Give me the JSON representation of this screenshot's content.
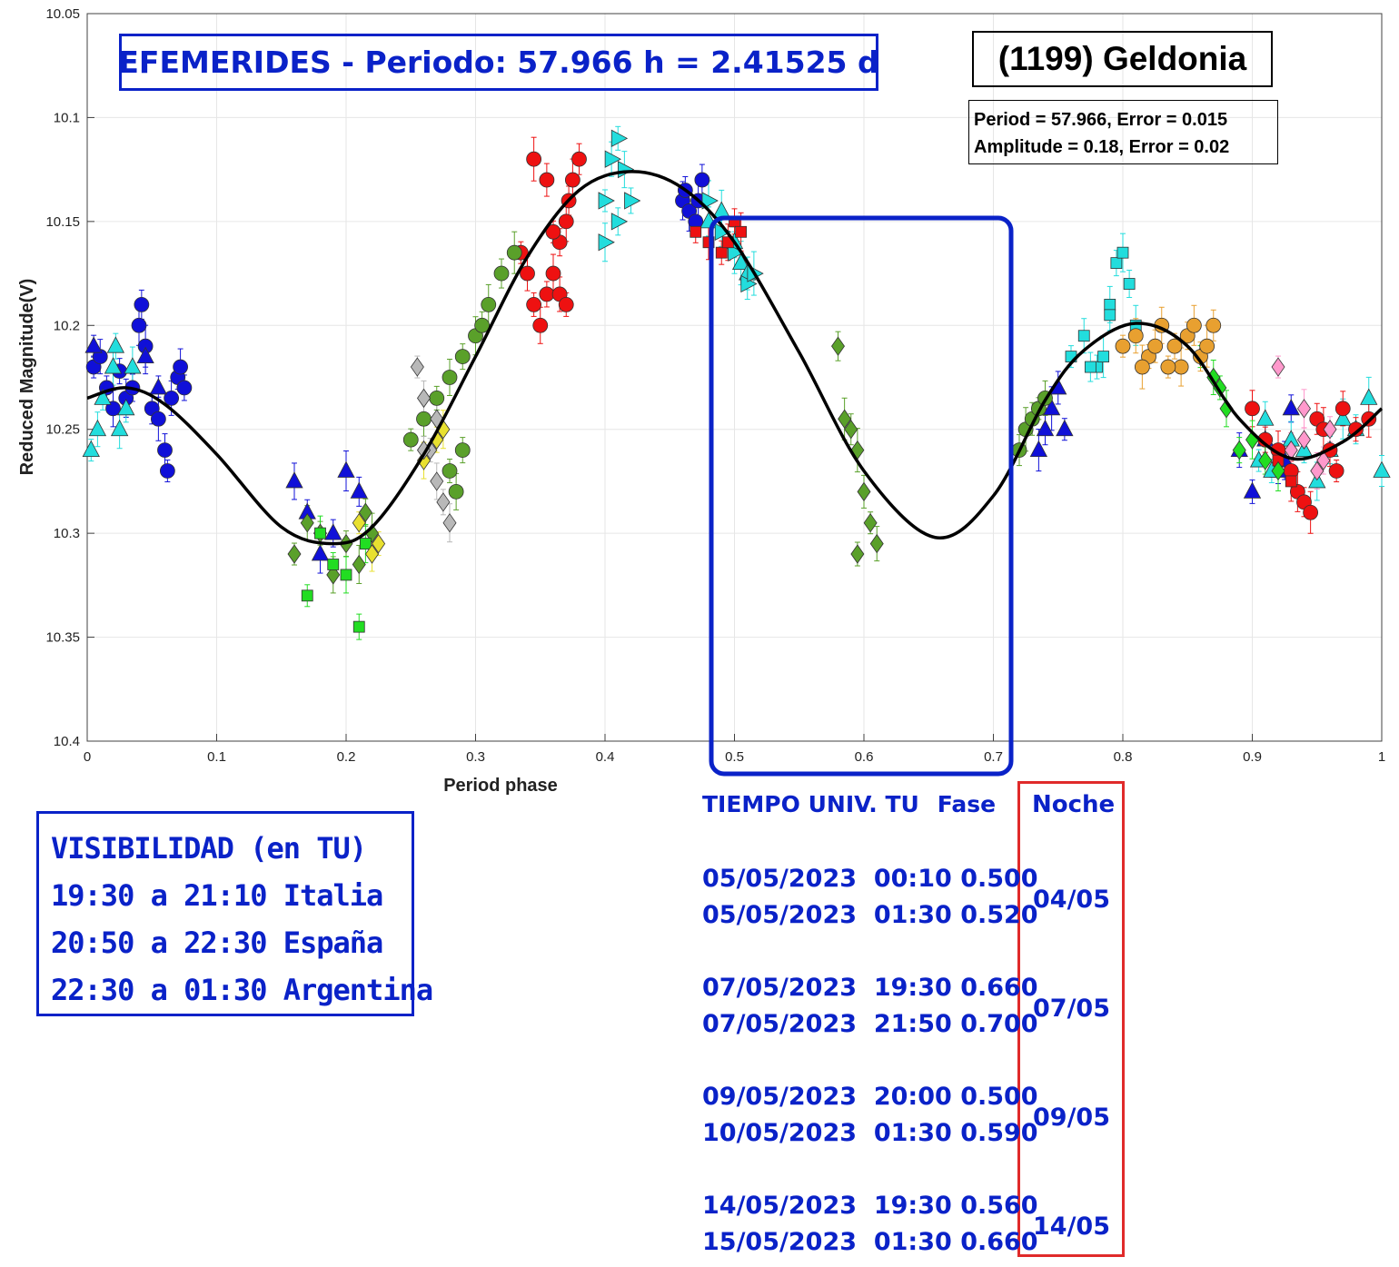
{
  "titles": {
    "ephemeris_title": "EFEMERIDES - Periodo: 57.966 h = 2.41525 d",
    "object_name": "(1199) Geldonia",
    "stats_period": "Period =  57.966, Error = 0.015",
    "stats_amplitude": "Amplitude = 0.18, Error = 0.02"
  },
  "visibility": {
    "title": "VISIBILIDAD (en TU)",
    "lines": [
      "19:30 a 21:10 Italia",
      "20:50 a 22:30 España",
      "22:30 a 01:30 Argentina"
    ]
  },
  "ephemeris": {
    "header_time": "TIEMPO UNIV. TU",
    "header_phase": "Fase",
    "header_night": "Noche",
    "rows": [
      {
        "date": "05/05/2023",
        "time": "00:10",
        "phase": "0.500"
      },
      {
        "date": "05/05/2023",
        "time": "01:30",
        "phase": "0.520"
      },
      {
        "date": "07/05/2023",
        "time": "19:30",
        "phase": "0.660"
      },
      {
        "date": "07/05/2023",
        "time": "21:50",
        "phase": "0.700"
      },
      {
        "date": "09/05/2023",
        "time": "20:00",
        "phase": "0.500"
      },
      {
        "date": "10/05/2023",
        "time": "01:30",
        "phase": "0.590"
      },
      {
        "date": "14/05/2023",
        "time": "19:30",
        "phase": "0.560"
      },
      {
        "date": "15/05/2023",
        "time": "01:30",
        "phase": "0.660"
      }
    ],
    "nights": [
      "04/05",
      "07/05",
      "09/05",
      "14/05"
    ]
  },
  "chart_data": {
    "type": "scatter",
    "xlabel": "Period phase",
    "ylabel": "Reduced Magnitude(V)",
    "xlim": [
      0,
      1
    ],
    "ylim": [
      10.05,
      10.4
    ],
    "y_inverted": true,
    "grid": true,
    "x_ticks": [
      "0",
      "0.1",
      "0.2",
      "0.3",
      "0.4",
      "0.5",
      "0.6",
      "0.7",
      "0.8",
      "0.9",
      "1"
    ],
    "y_ticks": [
      "10.05",
      "10.1",
      "10.15",
      "10.2",
      "10.25",
      "10.3",
      "10.35",
      "10.4"
    ],
    "highlight_phase_range": [
      0.485,
      0.715
    ],
    "fit_curve": {
      "x": [
        0.0,
        0.03,
        0.06,
        0.1,
        0.15,
        0.19,
        0.22,
        0.26,
        0.3,
        0.34,
        0.38,
        0.42,
        0.46,
        0.5,
        0.55,
        0.6,
        0.655,
        0.7,
        0.74,
        0.77,
        0.81,
        0.85,
        0.89,
        0.93,
        0.97,
        1.0
      ],
      "y": [
        10.235,
        10.23,
        10.238,
        10.262,
        10.297,
        10.305,
        10.297,
        10.262,
        10.215,
        10.167,
        10.135,
        10.126,
        10.134,
        10.16,
        10.213,
        10.27,
        10.302,
        10.282,
        10.236,
        10.212,
        10.199,
        10.21,
        10.245,
        10.264,
        10.256,
        10.24
      ]
    },
    "series": [
      {
        "color": "#1010d8",
        "marker": "circle",
        "x": [
          0.005,
          0.01,
          0.015,
          0.02,
          0.025,
          0.03,
          0.035,
          0.04,
          0.042,
          0.045,
          0.05,
          0.055,
          0.06,
          0.062,
          0.065,
          0.07,
          0.072,
          0.075,
          0.46,
          0.462,
          0.465,
          0.47,
          0.472,
          0.475
        ],
        "y": [
          10.22,
          10.215,
          10.23,
          10.24,
          10.222,
          10.235,
          10.23,
          10.2,
          10.19,
          10.21,
          10.24,
          10.245,
          10.26,
          10.27,
          10.235,
          10.225,
          10.22,
          10.23,
          10.14,
          10.135,
          10.145,
          10.15,
          10.14,
          10.13
        ]
      },
      {
        "color": "#1010d8",
        "marker": "triangle",
        "x": [
          0.005,
          0.045,
          0.055,
          0.16,
          0.17,
          0.18,
          0.19,
          0.2,
          0.21,
          0.735,
          0.74,
          0.745,
          0.75,
          0.755,
          0.89,
          0.9,
          0.91,
          0.92,
          0.925,
          0.93
        ],
        "y": [
          10.21,
          10.215,
          10.23,
          10.275,
          10.29,
          10.31,
          10.3,
          10.27,
          10.28,
          10.26,
          10.25,
          10.24,
          10.23,
          10.25,
          10.26,
          10.28,
          10.255,
          10.27,
          10.265,
          10.24
        ]
      },
      {
        "color": "#22dddd",
        "marker": "triangle",
        "x": [
          0.003,
          0.008,
          0.012,
          0.02,
          0.022,
          0.025,
          0.03,
          0.035,
          0.48,
          0.49,
          0.5,
          0.505,
          0.51,
          0.905,
          0.91,
          0.915,
          0.93,
          0.94,
          0.95,
          0.96,
          0.97,
          0.98,
          0.99,
          1.0
        ],
        "y": [
          10.26,
          10.25,
          10.235,
          10.22,
          10.21,
          10.25,
          10.24,
          10.22,
          10.15,
          10.145,
          10.16,
          10.17,
          10.175,
          10.265,
          10.245,
          10.27,
          10.255,
          10.26,
          10.275,
          10.26,
          10.245,
          10.25,
          10.235,
          10.27
        ]
      },
      {
        "color": "#22dddd",
        "marker": "triangle-right",
        "x": [
          0.4,
          0.405,
          0.41,
          0.415,
          0.42,
          0.4,
          0.41,
          0.48,
          0.49,
          0.5,
          0.51,
          0.515
        ],
        "y": [
          10.14,
          10.12,
          10.11,
          10.125,
          10.14,
          10.16,
          10.15,
          10.14,
          10.155,
          10.165,
          10.18,
          10.175
        ]
      },
      {
        "color": "#22dddd",
        "marker": "square",
        "x": [
          0.76,
          0.77,
          0.78,
          0.79,
          0.795,
          0.8,
          0.805,
          0.81,
          0.775,
          0.785,
          0.79
        ],
        "y": [
          10.215,
          10.205,
          10.22,
          10.19,
          10.17,
          10.165,
          10.18,
          10.2,
          10.22,
          10.215,
          10.195
        ]
      },
      {
        "color": "#ee1111",
        "marker": "circle",
        "x": [
          0.335,
          0.34,
          0.345,
          0.35,
          0.355,
          0.36,
          0.365,
          0.37,
          0.372,
          0.375,
          0.38,
          0.345,
          0.355,
          0.36,
          0.365,
          0.37,
          0.9,
          0.91,
          0.92,
          0.93,
          0.935,
          0.94,
          0.945,
          0.95,
          0.955,
          0.96,
          0.965,
          0.97,
          0.98,
          0.99
        ],
        "y": [
          10.165,
          10.175,
          10.19,
          10.2,
          10.185,
          10.175,
          10.16,
          10.15,
          10.14,
          10.13,
          10.12,
          10.12,
          10.13,
          10.155,
          10.185,
          10.19,
          10.24,
          10.255,
          10.26,
          10.27,
          10.28,
          10.285,
          10.29,
          10.245,
          10.25,
          10.26,
          10.27,
          10.24,
          10.25,
          10.245
        ]
      },
      {
        "color": "#ee1111",
        "marker": "square",
        "x": [
          0.47,
          0.48,
          0.49,
          0.495,
          0.5,
          0.505,
          0.92,
          0.93
        ],
        "y": [
          10.155,
          10.16,
          10.165,
          10.16,
          10.15,
          10.155,
          10.265,
          10.275
        ]
      },
      {
        "color": "#5aa02a",
        "marker": "circle",
        "x": [
          0.25,
          0.26,
          0.27,
          0.28,
          0.29,
          0.3,
          0.305,
          0.31,
          0.32,
          0.33,
          0.72,
          0.725,
          0.73,
          0.735,
          0.74,
          0.28,
          0.285,
          0.29
        ],
        "y": [
          10.255,
          10.245,
          10.235,
          10.225,
          10.215,
          10.205,
          10.2,
          10.19,
          10.175,
          10.165,
          10.26,
          10.25,
          10.245,
          10.24,
          10.235,
          10.27,
          10.28,
          10.26
        ]
      },
      {
        "color": "#5aa02a",
        "marker": "diamond",
        "x": [
          0.16,
          0.17,
          0.18,
          0.19,
          0.2,
          0.21,
          0.215,
          0.22,
          0.58,
          0.585,
          0.59,
          0.595,
          0.6,
          0.605,
          0.61,
          0.595
        ],
        "y": [
          10.31,
          10.295,
          10.3,
          10.32,
          10.305,
          10.315,
          10.29,
          10.3,
          10.21,
          10.245,
          10.25,
          10.26,
          10.28,
          10.295,
          10.305,
          10.31
        ]
      },
      {
        "color": "#22dd22",
        "marker": "diamond",
        "x": [
          0.86,
          0.87,
          0.875,
          0.88,
          0.89,
          0.9,
          0.91,
          0.92
        ],
        "y": [
          10.215,
          10.225,
          10.23,
          10.24,
          10.26,
          10.255,
          10.265,
          10.27
        ]
      },
      {
        "color": "#22dd22",
        "marker": "square",
        "x": [
          0.17,
          0.18,
          0.19,
          0.2,
          0.21,
          0.215
        ],
        "y": [
          10.33,
          10.3,
          10.315,
          10.32,
          10.345,
          10.305
        ]
      },
      {
        "color": "#e8a030",
        "marker": "circle",
        "x": [
          0.8,
          0.81,
          0.82,
          0.83,
          0.84,
          0.845,
          0.85,
          0.855,
          0.86,
          0.865,
          0.87,
          0.815,
          0.825,
          0.835
        ],
        "y": [
          10.21,
          10.205,
          10.215,
          10.2,
          10.21,
          10.22,
          10.205,
          10.2,
          10.215,
          10.21,
          10.2,
          10.22,
          10.21,
          10.22
        ]
      },
      {
        "color": "#e8e030",
        "marker": "diamond",
        "x": [
          0.21,
          0.22,
          0.225,
          0.26,
          0.27,
          0.275
        ],
        "y": [
          10.295,
          10.31,
          10.305,
          10.265,
          10.255,
          10.25
        ]
      },
      {
        "color": "#b8b8b8",
        "marker": "diamond",
        "x": [
          0.255,
          0.26,
          0.265,
          0.27,
          0.275,
          0.28,
          0.26,
          0.27
        ],
        "y": [
          10.22,
          10.235,
          10.26,
          10.275,
          10.285,
          10.295,
          10.26,
          10.245
        ]
      },
      {
        "color": "#ff99cc",
        "marker": "diamond",
        "x": [
          0.92,
          0.93,
          0.94,
          0.95,
          0.96,
          0.94,
          0.955
        ],
        "y": [
          10.22,
          10.26,
          10.255,
          10.27,
          10.25,
          10.24,
          10.265
        ]
      }
    ]
  }
}
